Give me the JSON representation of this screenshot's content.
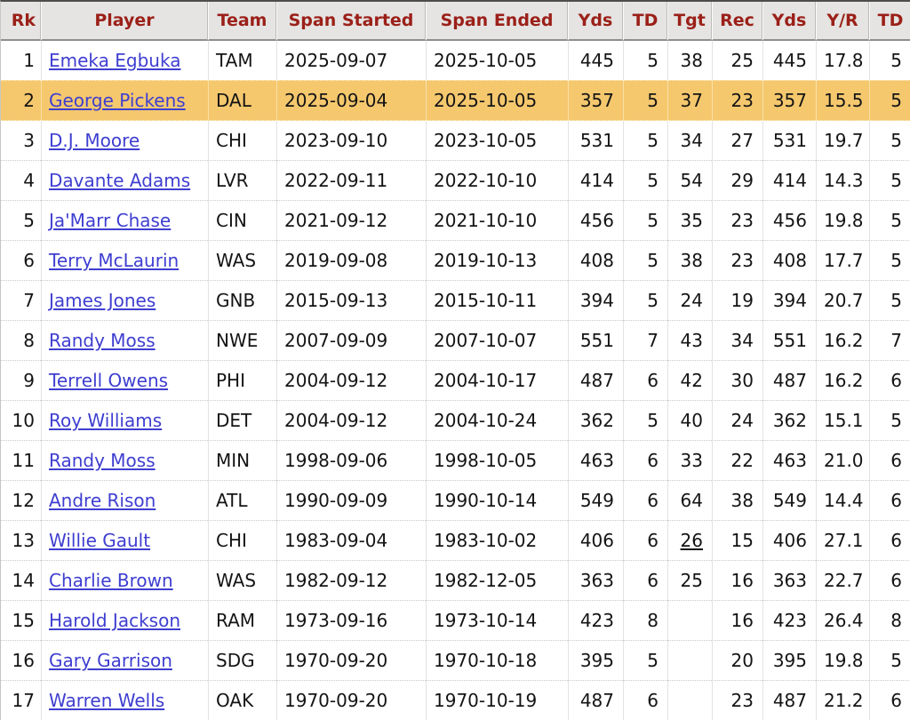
{
  "colors": {
    "header_text": "#9b2019",
    "header_bg": "#e5e4e2",
    "link": "#3e3ed1",
    "highlight_row_bg": "#f5c86e",
    "body_text": "#141414"
  },
  "table": {
    "link_column_index": 1,
    "underline_marks": [
      {
        "row": 12,
        "col": 7
      }
    ],
    "columns": [
      {
        "id": "rk",
        "label": "Rk",
        "align": "right"
      },
      {
        "id": "player",
        "label": "Player",
        "align": "left"
      },
      {
        "id": "team",
        "label": "Team",
        "align": "left"
      },
      {
        "id": "span-started",
        "label": "Span Started",
        "align": "left"
      },
      {
        "id": "span-ended",
        "label": "Span Ended",
        "align": "left"
      },
      {
        "id": "yds",
        "label": "Yds",
        "align": "right"
      },
      {
        "id": "td",
        "label": "TD",
        "align": "right"
      },
      {
        "id": "tgt",
        "label": "Tgt",
        "align": "right"
      },
      {
        "id": "rec",
        "label": "Rec",
        "align": "right"
      },
      {
        "id": "yds2",
        "label": "Yds",
        "align": "right"
      },
      {
        "id": "yr",
        "label": "Y/R",
        "align": "right"
      },
      {
        "id": "td2",
        "label": "TD",
        "align": "right"
      }
    ],
    "rows": [
      {
        "highlight": false,
        "cells": [
          "1",
          "Emeka Egbuka",
          "TAM",
          "2025-09-07",
          "2025-10-05",
          "445",
          "5",
          "38",
          "25",
          "445",
          "17.8",
          "5"
        ]
      },
      {
        "highlight": true,
        "cells": [
          "2",
          "George Pickens",
          "DAL",
          "2025-09-04",
          "2025-10-05",
          "357",
          "5",
          "37",
          "23",
          "357",
          "15.5",
          "5"
        ]
      },
      {
        "highlight": false,
        "cells": [
          "3",
          "D.J. Moore",
          "CHI",
          "2023-09-10",
          "2023-10-05",
          "531",
          "5",
          "34",
          "27",
          "531",
          "19.7",
          "5"
        ]
      },
      {
        "highlight": false,
        "cells": [
          "4",
          "Davante Adams",
          "LVR",
          "2022-09-11",
          "2022-10-10",
          "414",
          "5",
          "54",
          "29",
          "414",
          "14.3",
          "5"
        ]
      },
      {
        "highlight": false,
        "cells": [
          "5",
          "Ja'Marr Chase",
          "CIN",
          "2021-09-12",
          "2021-10-10",
          "456",
          "5",
          "35",
          "23",
          "456",
          "19.8",
          "5"
        ]
      },
      {
        "highlight": false,
        "cells": [
          "6",
          "Terry McLaurin",
          "WAS",
          "2019-09-08",
          "2019-10-13",
          "408",
          "5",
          "38",
          "23",
          "408",
          "17.7",
          "5"
        ]
      },
      {
        "highlight": false,
        "cells": [
          "7",
          "James Jones",
          "GNB",
          "2015-09-13",
          "2015-10-11",
          "394",
          "5",
          "24",
          "19",
          "394",
          "20.7",
          "5"
        ]
      },
      {
        "highlight": false,
        "cells": [
          "8",
          "Randy Moss",
          "NWE",
          "2007-09-09",
          "2007-10-07",
          "551",
          "7",
          "43",
          "34",
          "551",
          "16.2",
          "7"
        ]
      },
      {
        "highlight": false,
        "cells": [
          "9",
          "Terrell Owens",
          "PHI",
          "2004-09-12",
          "2004-10-17",
          "487",
          "6",
          "42",
          "30",
          "487",
          "16.2",
          "6"
        ]
      },
      {
        "highlight": false,
        "cells": [
          "10",
          "Roy Williams",
          "DET",
          "2004-09-12",
          "2004-10-24",
          "362",
          "5",
          "40",
          "24",
          "362",
          "15.1",
          "5"
        ]
      },
      {
        "highlight": false,
        "cells": [
          "11",
          "Randy Moss",
          "MIN",
          "1998-09-06",
          "1998-10-05",
          "463",
          "6",
          "33",
          "22",
          "463",
          "21.0",
          "6"
        ]
      },
      {
        "highlight": false,
        "cells": [
          "12",
          "Andre Rison",
          "ATL",
          "1990-09-09",
          "1990-10-14",
          "549",
          "6",
          "64",
          "38",
          "549",
          "14.4",
          "6"
        ]
      },
      {
        "highlight": false,
        "cells": [
          "13",
          "Willie Gault",
          "CHI",
          "1983-09-04",
          "1983-10-02",
          "406",
          "6",
          "26",
          "15",
          "406",
          "27.1",
          "6"
        ]
      },
      {
        "highlight": false,
        "cells": [
          "14",
          "Charlie Brown",
          "WAS",
          "1982-09-12",
          "1982-12-05",
          "363",
          "6",
          "25",
          "16",
          "363",
          "22.7",
          "6"
        ]
      },
      {
        "highlight": false,
        "cells": [
          "15",
          "Harold Jackson",
          "RAM",
          "1973-09-16",
          "1973-10-14",
          "423",
          "8",
          "",
          "16",
          "423",
          "26.4",
          "8"
        ]
      },
      {
        "highlight": false,
        "cells": [
          "16",
          "Gary Garrison",
          "SDG",
          "1970-09-20",
          "1970-10-18",
          "395",
          "5",
          "",
          "20",
          "395",
          "19.8",
          "5"
        ]
      },
      {
        "highlight": false,
        "cells": [
          "17",
          "Warren Wells",
          "OAK",
          "1970-09-20",
          "1970-10-19",
          "487",
          "6",
          "",
          "23",
          "487",
          "21.2",
          "6"
        ]
      }
    ]
  }
}
